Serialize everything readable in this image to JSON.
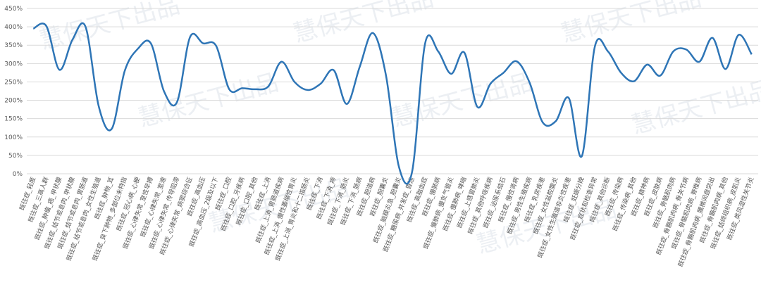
{
  "chart_data": {
    "type": "line",
    "categories": [
      "既往症_轻度",
      "既往症_三高人群",
      "既往症_肿瘤_癌_甲状腺",
      "既往症_结节或息肉_甲状腺",
      "既往症_结节或息肉_胃肠道",
      "既往症_结节或息肉_女性生殖道",
      "既往症_肿物_耳",
      "既往症_良下肿物_多部位未特指",
      "既往症_冠心病_心梗",
      "既往症_心律失常_室性早搏",
      "既往症_心律失常_室速",
      "既往症_心律失常_传导阻滞",
      "既往症_心律失常_病窦综合征",
      "既往症_高血压",
      "既往症_高血压_2级及以下",
      "既往症_口腔",
      "既往症_口腔_牙疾病",
      "既往症_口腔_其他",
      "既往症_上消",
      "既往症_上消_胃肠道疾病",
      "既往症_上消_慢性萎缩性胃炎",
      "既往症_上消_胃炎和十二指肠炎",
      "既往症_下消",
      "既往症_下消_痔",
      "既往症_下消_肠炎",
      "既往症_下消_肠病",
      "既往症_胆道病",
      "既往症_胆囊炎",
      "既往症_脑膜炎急_胆囊炎",
      "既往症_糖尿病_并发症_昏迷",
      "既往症_高脂血症",
      "既往症_慢肺病",
      "既往症_慢肺病_慢支气管炎",
      "既往症_慢肺病_哮喘",
      "既往症_上感冒肺炎",
      "既往症_其他呼吸疾病",
      "既往症_泌尿系结石",
      "既往症_慢性肾病",
      "既往症_男性生殖疾病",
      "既往症_乳房疾患",
      "既往症_女性盆腔腹炎",
      "既往症_女性生殖道非炎性疾患",
      "既往症_妊娠分娩",
      "既往症_症状和检查异常",
      "既往症_其他诊断",
      "既往症_传染病",
      "既往症_传染病_其他",
      "既往症_精神病",
      "既往症_皮肤病",
      "既往症_骨骼肌肉病",
      "既往症_骨骼肌肉病_骨关节病",
      "既往症_骨骼肌肉病_脊椎病",
      "既往症_骨骼肌肉病_腰椎间盘突出",
      "既往症_骨骼肌肉病_其他",
      "既往症_结缔组织病_皮肌炎",
      "既往症_类风湿性关节炎"
    ],
    "values": [
      395,
      402,
      283,
      365,
      400,
      185,
      122,
      280,
      340,
      355,
      225,
      195,
      372,
      355,
      348,
      230,
      233,
      230,
      238,
      305,
      250,
      228,
      245,
      282,
      190,
      292,
      383,
      268,
      18,
      5,
      355,
      333,
      272,
      330,
      182,
      245,
      275,
      306,
      248,
      140,
      143,
      206,
      48,
      347,
      333,
      275,
      252,
      297,
      267,
      333,
      338,
      305,
      370,
      285,
      378,
      325
    ],
    "color": "#2e75b6",
    "ylim": [
      0,
      450
    ],
    "yticks": [
      {
        "value": 0,
        "label": "0%"
      },
      {
        "value": 50,
        "label": "50%"
      },
      {
        "value": 100,
        "label": "100%"
      },
      {
        "value": 150,
        "label": "150%"
      },
      {
        "value": 200,
        "label": "200%"
      },
      {
        "value": 250,
        "label": "250%"
      },
      {
        "value": 300,
        "label": "300%"
      },
      {
        "value": 350,
        "label": "350%"
      },
      {
        "value": 400,
        "label": "400%"
      },
      {
        "value": 450,
        "label": "450%"
      }
    ],
    "grid": true,
    "watermark": "慧保天下出品"
  }
}
